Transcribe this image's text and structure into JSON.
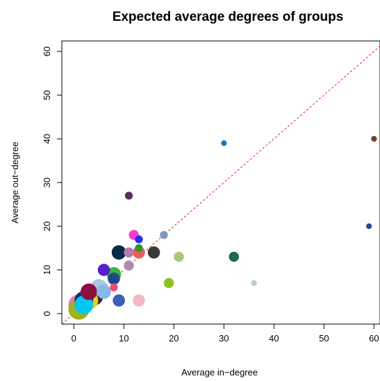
{
  "chart_data": {
    "type": "scatter",
    "title": "Expected average degrees of groups",
    "xlabel": "Average in−degree",
    "ylabel": "Average out−degree",
    "xlim": [
      -2.4,
      61.2
    ],
    "ylim": [
      -2.4,
      62.4
    ],
    "xticks": [
      0,
      10,
      20,
      30,
      40,
      50,
      60
    ],
    "yticks": [
      0,
      10,
      20,
      30,
      40,
      50,
      60
    ],
    "xtick_labels": [
      "0",
      "10",
      "20",
      "30",
      "40",
      "50",
      "60"
    ],
    "ytick_labels": [
      "0",
      "10",
      "20",
      "30",
      "40",
      "50",
      "60"
    ],
    "grid": false,
    "reference_line": {
      "type": "identity",
      "style": "dashed",
      "color": "#e31a1c"
    },
    "points": [
      {
        "x": 30,
        "y": 39,
        "size": 1,
        "color": "#1f78b4"
      },
      {
        "x": 60,
        "y": 40,
        "size": 1,
        "color": "#7b3f2e"
      },
      {
        "x": 59,
        "y": 20,
        "size": 1,
        "color": "#274e8c"
      },
      {
        "x": 36,
        "y": 7,
        "size": 1,
        "color": "#b5ccd6"
      },
      {
        "x": 11,
        "y": 27,
        "size": 2,
        "color": "#5a2d5c"
      },
      {
        "x": 12,
        "y": 18,
        "size": 3,
        "color": "#f53fc8"
      },
      {
        "x": 13,
        "y": 17,
        "size": 2,
        "color": "#2a2af0"
      },
      {
        "x": 18,
        "y": 18,
        "size": 2,
        "color": "#7b98c2"
      },
      {
        "x": 32,
        "y": 13,
        "size": 3,
        "color": "#1b6b4a"
      },
      {
        "x": 21,
        "y": 13,
        "size": 3,
        "color": "#a9c77a"
      },
      {
        "x": 19,
        "y": 7,
        "size": 3,
        "color": "#8fc21a"
      },
      {
        "x": 16,
        "y": 14,
        "size": 4,
        "color": "#3a3a3a"
      },
      {
        "x": 13,
        "y": 15,
        "size": 2,
        "color": "#2a9a2a"
      },
      {
        "x": 13,
        "y": 14,
        "size": 4,
        "color": "#f05a5a"
      },
      {
        "x": 11,
        "y": 14,
        "size": 3,
        "color": "#b97aa8"
      },
      {
        "x": 9,
        "y": 14,
        "size": 5,
        "color": "#0a2a4a"
      },
      {
        "x": 11,
        "y": 11,
        "size": 3,
        "color": "#b08ab0"
      },
      {
        "x": 13,
        "y": 3,
        "size": 4,
        "color": "#f2b8c4"
      },
      {
        "x": 9,
        "y": 3,
        "size": 4,
        "color": "#3a5fb8"
      },
      {
        "x": 6,
        "y": 10,
        "size": 4,
        "color": "#5a1ec8"
      },
      {
        "x": 8,
        "y": 9,
        "size": 5,
        "color": "#3cb43c"
      },
      {
        "x": 8,
        "y": 8,
        "size": 4,
        "color": "#1a4a8a"
      },
      {
        "x": 8,
        "y": 6,
        "size": 2,
        "color": "#f04a7a"
      },
      {
        "x": 6,
        "y": 5,
        "size": 5,
        "color": "#8ab8e8"
      },
      {
        "x": 5,
        "y": 6,
        "size": 6,
        "color": "#a8c8e8"
      },
      {
        "x": 4,
        "y": 4,
        "size": 7,
        "color": "#3a2a1a"
      },
      {
        "x": 3,
        "y": 5,
        "size": 6,
        "color": "#8a1040"
      },
      {
        "x": 3,
        "y": 3,
        "size": 7,
        "color": "#e8d020"
      },
      {
        "x": 2,
        "y": 3,
        "size": 7,
        "color": "#1a2a6a"
      },
      {
        "x": 2,
        "y": 2,
        "size": 7,
        "color": "#00c8f0"
      },
      {
        "x": 1,
        "y": 2,
        "size": 8,
        "color": "#e878b8"
      },
      {
        "x": 1,
        "y": 1,
        "size": 8,
        "color": "#a0b020"
      }
    ]
  }
}
